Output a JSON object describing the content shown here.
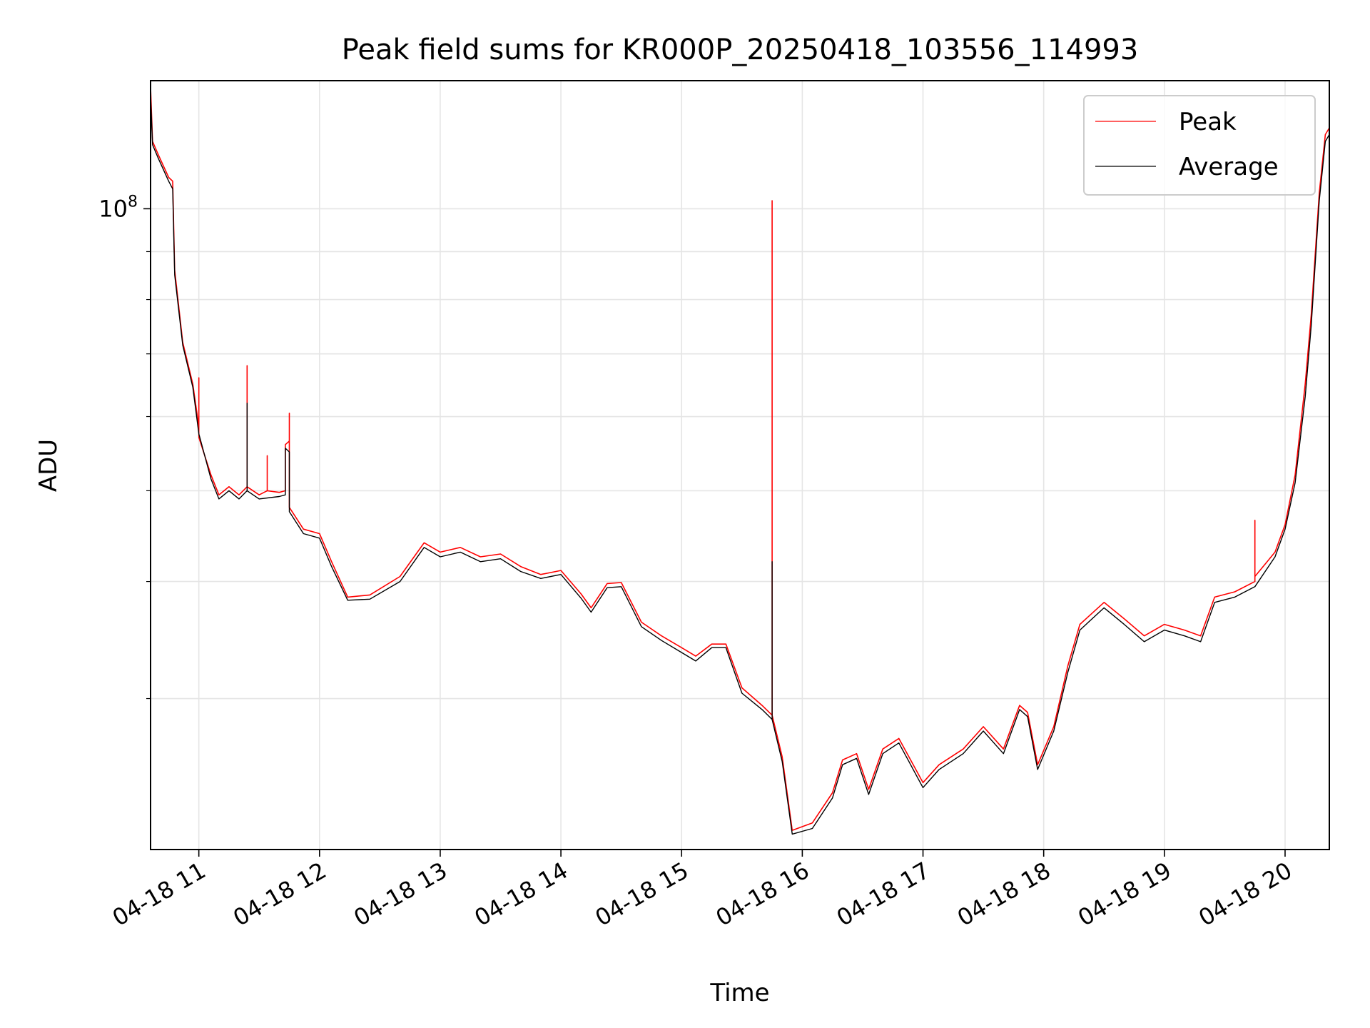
{
  "chart_data": {
    "type": "line",
    "title": "Peak field sums for KR000P_20250418_103556_114993",
    "xlabel": "Time",
    "ylabel": "ADU",
    "y_scale": "log",
    "y_tick_labels": [
      {
        "value": 100000000,
        "base": "10",
        "exponent": "8"
      }
    ],
    "xlim": [
      "2025-04-18 10:36",
      "2025-04-18 20:22"
    ],
    "ylim": [
      20700000,
      137000000
    ],
    "x_ticks": [
      {
        "t": "2025-04-18 11:00",
        "label": "04-18 11"
      },
      {
        "t": "2025-04-18 12:00",
        "label": "04-18 12"
      },
      {
        "t": "2025-04-18 13:00",
        "label": "04-18 13"
      },
      {
        "t": "2025-04-18 14:00",
        "label": "04-18 14"
      },
      {
        "t": "2025-04-18 15:00",
        "label": "04-18 15"
      },
      {
        "t": "2025-04-18 16:00",
        "label": "04-18 16"
      },
      {
        "t": "2025-04-18 17:00",
        "label": "04-18 17"
      },
      {
        "t": "2025-04-18 18:00",
        "label": "04-18 18"
      },
      {
        "t": "2025-04-18 19:00",
        "label": "04-18 19"
      },
      {
        "t": "2025-04-18 20:00",
        "label": "04-18 20"
      }
    ],
    "grid": true,
    "legend_position": "top-right",
    "series": [
      {
        "name": "Peak",
        "color": "#ff0000",
        "points": [
          [
            "2025-04-18 10:36",
            135000000
          ],
          [
            "2025-04-18 10:37",
            118000000
          ],
          [
            "2025-04-18 10:40",
            114000000
          ],
          [
            "2025-04-18 10:45",
            108000000
          ],
          [
            "2025-04-18 10:47",
            107000000
          ],
          [
            "2025-04-18 10:48",
            86000000
          ],
          [
            "2025-04-18 10:52",
            72000000
          ],
          [
            "2025-04-18 10:57",
            65000000
          ],
          [
            "2025-04-18 11:00",
            58500000
          ],
          [
            "2025-04-18 11:00",
            66000000
          ],
          [
            "2025-04-18 11:00",
            57000000
          ],
          [
            "2025-04-18 11:06",
            52000000
          ],
          [
            "2025-04-18 11:10",
            49500000
          ],
          [
            "2025-04-18 11:15",
            50500000
          ],
          [
            "2025-04-18 11:20",
            49500000
          ],
          [
            "2025-04-18 11:24",
            50500000
          ],
          [
            "2025-04-18 11:24",
            68000000
          ],
          [
            "2025-04-18 11:24",
            50500000
          ],
          [
            "2025-04-18 11:30",
            49500000
          ],
          [
            "2025-04-18 11:34",
            50000000
          ],
          [
            "2025-04-18 11:34",
            54500000
          ],
          [
            "2025-04-18 11:34",
            50000000
          ],
          [
            "2025-04-18 11:40",
            49800000
          ],
          [
            "2025-04-18 11:43",
            50000000
          ],
          [
            "2025-04-18 11:43",
            56000000
          ],
          [
            "2025-04-18 11:45",
            56500000
          ],
          [
            "2025-04-18 11:45",
            60500000
          ],
          [
            "2025-04-18 11:45",
            48000000
          ],
          [
            "2025-04-18 11:52",
            45500000
          ],
          [
            "2025-04-18 12:00",
            45000000
          ],
          [
            "2025-04-18 12:06",
            42000000
          ],
          [
            "2025-04-18 12:14",
            38500000
          ],
          [
            "2025-04-18 12:25",
            38700000
          ],
          [
            "2025-04-18 12:40",
            40500000
          ],
          [
            "2025-04-18 12:52",
            44000000
          ],
          [
            "2025-04-18 13:00",
            43000000
          ],
          [
            "2025-04-18 13:10",
            43500000
          ],
          [
            "2025-04-18 13:20",
            42500000
          ],
          [
            "2025-04-18 13:30",
            42800000
          ],
          [
            "2025-04-18 13:40",
            41500000
          ],
          [
            "2025-04-18 13:50",
            40700000
          ],
          [
            "2025-04-18 14:00",
            41100000
          ],
          [
            "2025-04-18 14:10",
            38800000
          ],
          [
            "2025-04-18 14:15",
            37500000
          ],
          [
            "2025-04-18 14:23",
            39800000
          ],
          [
            "2025-04-18 14:30",
            39900000
          ],
          [
            "2025-04-18 14:40",
            36200000
          ],
          [
            "2025-04-18 14:50",
            35000000
          ],
          [
            "2025-04-18 15:00",
            34000000
          ],
          [
            "2025-04-18 15:07",
            33300000
          ],
          [
            "2025-04-18 15:15",
            34300000
          ],
          [
            "2025-04-18 15:22",
            34300000
          ],
          [
            "2025-04-18 15:30",
            30800000
          ],
          [
            "2025-04-18 15:40",
            29500000
          ],
          [
            "2025-04-18 15:45",
            28800000
          ],
          [
            "2025-04-18 15:45",
            102000000
          ],
          [
            "2025-04-18 15:45",
            28800000
          ],
          [
            "2025-04-18 15:50",
            26000000
          ],
          [
            "2025-04-18 15:55",
            21700000
          ],
          [
            "2025-04-18 16:05",
            22100000
          ],
          [
            "2025-04-18 16:15",
            23800000
          ],
          [
            "2025-04-18 16:20",
            25800000
          ],
          [
            "2025-04-18 16:27",
            26200000
          ],
          [
            "2025-04-18 16:33",
            24000000
          ],
          [
            "2025-04-18 16:40",
            26500000
          ],
          [
            "2025-04-18 16:48",
            27200000
          ],
          [
            "2025-04-18 16:53",
            26000000
          ],
          [
            "2025-04-18 17:00",
            24400000
          ],
          [
            "2025-04-18 17:08",
            25500000
          ],
          [
            "2025-04-18 17:20",
            26500000
          ],
          [
            "2025-04-18 17:30",
            28000000
          ],
          [
            "2025-04-18 17:40",
            26500000
          ],
          [
            "2025-04-18 17:48",
            29500000
          ],
          [
            "2025-04-18 17:52",
            29000000
          ],
          [
            "2025-04-18 17:57",
            25500000
          ],
          [
            "2025-04-18 18:05",
            28000000
          ],
          [
            "2025-04-18 18:12",
            32500000
          ],
          [
            "2025-04-18 18:18",
            36000000
          ],
          [
            "2025-04-18 18:30",
            38000000
          ],
          [
            "2025-04-18 18:40",
            36500000
          ],
          [
            "2025-04-18 18:50",
            35000000
          ],
          [
            "2025-04-18 19:00",
            36000000
          ],
          [
            "2025-04-18 19:10",
            35500000
          ],
          [
            "2025-04-18 19:18",
            35000000
          ],
          [
            "2025-04-18 19:25",
            38500000
          ],
          [
            "2025-04-18 19:35",
            39000000
          ],
          [
            "2025-04-18 19:45",
            40000000
          ],
          [
            "2025-04-18 19:45",
            46500000
          ],
          [
            "2025-04-18 19:45",
            40500000
          ],
          [
            "2025-04-18 19:55",
            43000000
          ],
          [
            "2025-04-18 20:00",
            46000000
          ],
          [
            "2025-04-18 20:05",
            52000000
          ],
          [
            "2025-04-18 20:10",
            65000000
          ],
          [
            "2025-04-18 20:13",
            77000000
          ],
          [
            "2025-04-18 20:17",
            104000000
          ],
          [
            "2025-04-18 20:20",
            120000000
          ],
          [
            "2025-04-18 20:22",
            122000000
          ]
        ]
      },
      {
        "name": "Average",
        "color": "#000000",
        "points": [
          [
            "2025-04-18 10:36",
            132000000
          ],
          [
            "2025-04-18 10:37",
            117000000
          ],
          [
            "2025-04-18 10:40",
            113000000
          ],
          [
            "2025-04-18 10:45",
            107000000
          ],
          [
            "2025-04-18 10:47",
            105000000
          ],
          [
            "2025-04-18 10:48",
            85000000
          ],
          [
            "2025-04-18 10:52",
            71500000
          ],
          [
            "2025-04-18 10:57",
            64500000
          ],
          [
            "2025-04-18 11:00",
            57500000
          ],
          [
            "2025-04-18 11:06",
            51500000
          ],
          [
            "2025-04-18 11:10",
            49000000
          ],
          [
            "2025-04-18 11:15",
            50000000
          ],
          [
            "2025-04-18 11:20",
            49000000
          ],
          [
            "2025-04-18 11:24",
            50000000
          ],
          [
            "2025-04-18 11:24",
            62000000
          ],
          [
            "2025-04-18 11:24",
            50000000
          ],
          [
            "2025-04-18 11:30",
            49000000
          ],
          [
            "2025-04-18 11:40",
            49300000
          ],
          [
            "2025-04-18 11:43",
            49500000
          ],
          [
            "2025-04-18 11:43",
            55500000
          ],
          [
            "2025-04-18 11:45",
            55000000
          ],
          [
            "2025-04-18 11:45",
            47500000
          ],
          [
            "2025-04-18 11:52",
            45000000
          ],
          [
            "2025-04-18 12:00",
            44500000
          ],
          [
            "2025-04-18 12:06",
            41500000
          ],
          [
            "2025-04-18 12:14",
            38200000
          ],
          [
            "2025-04-18 12:25",
            38300000
          ],
          [
            "2025-04-18 12:40",
            40000000
          ],
          [
            "2025-04-18 12:52",
            43500000
          ],
          [
            "2025-04-18 13:00",
            42500000
          ],
          [
            "2025-04-18 13:10",
            43000000
          ],
          [
            "2025-04-18 13:20",
            42000000
          ],
          [
            "2025-04-18 13:30",
            42300000
          ],
          [
            "2025-04-18 13:40",
            41000000
          ],
          [
            "2025-04-18 13:50",
            40300000
          ],
          [
            "2025-04-18 14:00",
            40700000
          ],
          [
            "2025-04-18 14:10",
            38400000
          ],
          [
            "2025-04-18 14:15",
            37100000
          ],
          [
            "2025-04-18 14:23",
            39400000
          ],
          [
            "2025-04-18 14:30",
            39500000
          ],
          [
            "2025-04-18 14:40",
            35800000
          ],
          [
            "2025-04-18 14:50",
            34600000
          ],
          [
            "2025-04-18 15:00",
            33600000
          ],
          [
            "2025-04-18 15:07",
            32900000
          ],
          [
            "2025-04-18 15:15",
            34000000
          ],
          [
            "2025-04-18 15:22",
            34000000
          ],
          [
            "2025-04-18 15:30",
            30400000
          ],
          [
            "2025-04-18 15:40",
            29200000
          ],
          [
            "2025-04-18 15:45",
            28500000
          ],
          [
            "2025-04-18 15:45",
            42000000
          ],
          [
            "2025-04-18 15:45",
            28500000
          ],
          [
            "2025-04-18 15:50",
            25700000
          ],
          [
            "2025-04-18 15:55",
            21500000
          ],
          [
            "2025-04-18 16:05",
            21800000
          ],
          [
            "2025-04-18 16:15",
            23500000
          ],
          [
            "2025-04-18 16:20",
            25500000
          ],
          [
            "2025-04-18 16:27",
            25900000
          ],
          [
            "2025-04-18 16:33",
            23700000
          ],
          [
            "2025-04-18 16:40",
            26200000
          ],
          [
            "2025-04-18 16:48",
            26900000
          ],
          [
            "2025-04-18 16:53",
            25700000
          ],
          [
            "2025-04-18 17:00",
            24100000
          ],
          [
            "2025-04-18 17:08",
            25200000
          ],
          [
            "2025-04-18 17:20",
            26200000
          ],
          [
            "2025-04-18 17:30",
            27700000
          ],
          [
            "2025-04-18 17:40",
            26200000
          ],
          [
            "2025-04-18 17:48",
            29200000
          ],
          [
            "2025-04-18 17:52",
            28700000
          ],
          [
            "2025-04-18 17:57",
            25200000
          ],
          [
            "2025-04-18 18:05",
            27700000
          ],
          [
            "2025-04-18 18:12",
            32000000
          ],
          [
            "2025-04-18 18:18",
            35500000
          ],
          [
            "2025-04-18 18:30",
            37500000
          ],
          [
            "2025-04-18 18:40",
            36000000
          ],
          [
            "2025-04-18 18:50",
            34500000
          ],
          [
            "2025-04-18 19:00",
            35500000
          ],
          [
            "2025-04-18 19:10",
            35000000
          ],
          [
            "2025-04-18 19:18",
            34500000
          ],
          [
            "2025-04-18 19:25",
            38000000
          ],
          [
            "2025-04-18 19:35",
            38500000
          ],
          [
            "2025-04-18 19:45",
            39500000
          ],
          [
            "2025-04-18 19:55",
            42500000
          ],
          [
            "2025-04-18 20:00",
            45500000
          ],
          [
            "2025-04-18 20:05",
            51000000
          ],
          [
            "2025-04-18 20:10",
            63000000
          ],
          [
            "2025-04-18 20:13",
            75000000
          ],
          [
            "2025-04-18 20:17",
            102000000
          ],
          [
            "2025-04-18 20:20",
            118000000
          ],
          [
            "2025-04-18 20:22",
            120000000
          ]
        ]
      }
    ]
  }
}
